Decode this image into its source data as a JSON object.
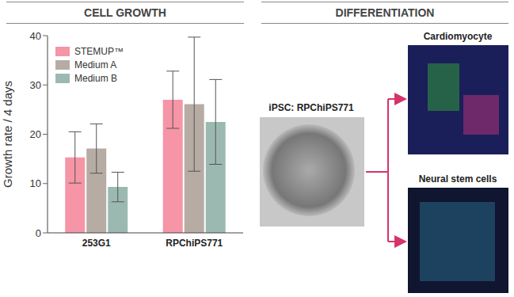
{
  "chart_data": {
    "type": "bar",
    "title": "CELL GROWTH",
    "y_label": "Growth rate / 4 days",
    "categories": [
      "253G1",
      "RPChiPS771"
    ],
    "series": [
      {
        "name": "STEMUP™",
        "color": "#f595a6",
        "values": [
          15.3,
          27.0
        ],
        "errors": [
          5.2,
          5.8
        ]
      },
      {
        "name": "Medium A",
        "color": "#b7aca4",
        "values": [
          17.1,
          26.1
        ],
        "errors": [
          5.0,
          13.6
        ]
      },
      {
        "name": "Medium B",
        "color": "#9cb9b1",
        "values": [
          9.3,
          22.5
        ],
        "errors": [
          3.0,
          8.6
        ]
      }
    ],
    "ylim": [
      0,
      40
    ],
    "yticks": [
      0,
      10,
      20,
      30,
      40
    ],
    "grid": false,
    "legend": "upper left"
  },
  "diagram": {
    "title": "DIFFERENTIATION",
    "source": "iPSC: RPChiPS771",
    "targets": [
      "Cardiomyocyte",
      "Neural stem cells"
    ]
  }
}
